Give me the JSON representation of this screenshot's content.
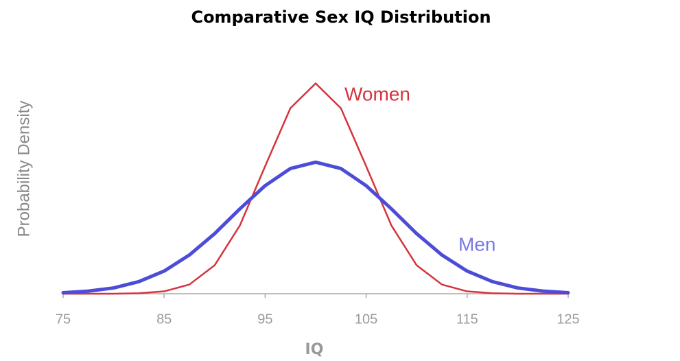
{
  "chart_data": {
    "type": "line",
    "title": "Comparative Sex IQ Distribution",
    "x_label": "IQ",
    "y_label": "Probability Density",
    "x": [
      75,
      77.5,
      80,
      82.5,
      85,
      87.5,
      90,
      92.5,
      95,
      97.5,
      100,
      102.5,
      105,
      107.5,
      110,
      112.5,
      115,
      117.5,
      120,
      122.5,
      125
    ],
    "series": [
      {
        "name": "Women",
        "color": "#d6333d",
        "values": [
          0.0,
          0.0,
          0.0,
          0.0002,
          0.0009,
          0.0035,
          0.0108,
          0.0259,
          0.0484,
          0.0704,
          0.0798,
          0.0704,
          0.0484,
          0.0259,
          0.0108,
          0.0035,
          0.0009,
          0.0002,
          0.0,
          0.0,
          0.0
        ]
      },
      {
        "name": "Men",
        "color": "#4c4cd9",
        "values": [
          0.0004,
          0.001,
          0.0022,
          0.0046,
          0.0086,
          0.0147,
          0.0228,
          0.0322,
          0.041,
          0.0475,
          0.0499,
          0.0475,
          0.041,
          0.0322,
          0.0228,
          0.0147,
          0.0086,
          0.0046,
          0.0022,
          0.001,
          0.0004
        ]
      }
    ],
    "xlim": [
      75,
      125
    ],
    "xticks": [
      75,
      85,
      95,
      105,
      115,
      125
    ],
    "ylim": [
      0,
      0.088
    ]
  }
}
